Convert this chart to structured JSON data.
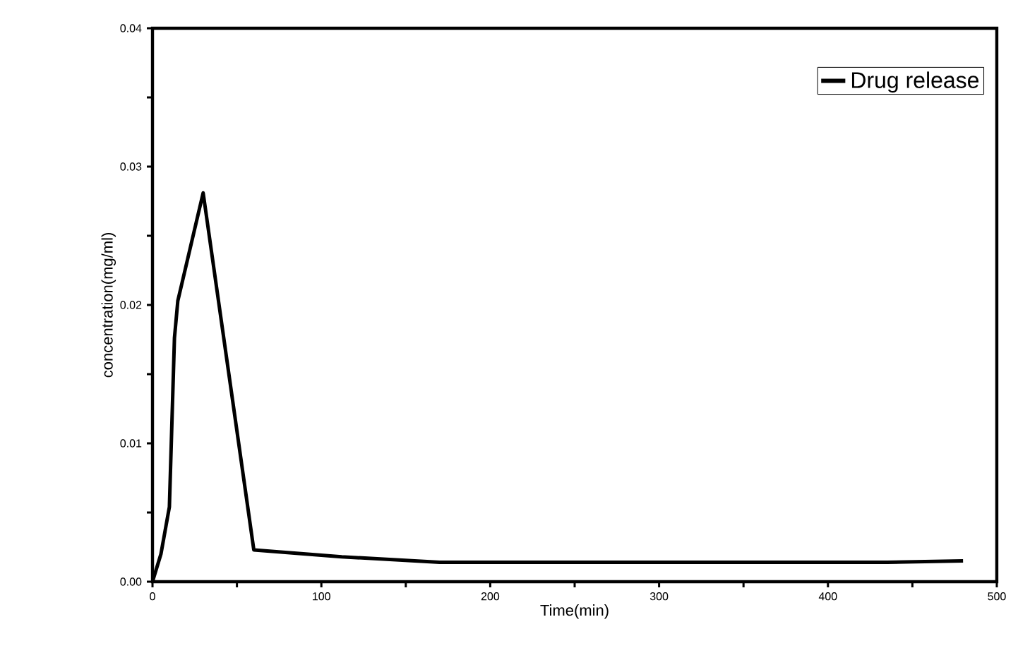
{
  "chart_data": {
    "type": "line",
    "xlabel": "Time(min)",
    "ylabel": "concentration(mg/ml)",
    "x": [
      0,
      5,
      10,
      13,
      15,
      30,
      60,
      112,
      170,
      300,
      435,
      480
    ],
    "series": [
      {
        "name": "Drug release",
        "color": "#000000",
        "values": [
          0,
          0.002,
          0.0054,
          0.0176,
          0.0203,
          0.0281,
          0.0023,
          0.0018,
          0.0014,
          0.0014,
          0.0014,
          0.0015
        ]
      }
    ],
    "xlim": [
      0,
      500
    ],
    "ylim": [
      0,
      0.04
    ],
    "xticks": [
      0,
      {
        "value": 50,
        "label": null
      },
      100,
      {
        "value": 150,
        "label": null
      },
      200,
      {
        "value": 250,
        "label": null
      },
      300,
      {
        "value": 350,
        "label": null
      },
      400,
      {
        "value": 450,
        "label": null
      },
      500
    ],
    "yticks": [
      {
        "value": 0,
        "label": "0.00"
      },
      {
        "value": 0.005,
        "label": null
      },
      {
        "value": 0.01,
        "label": "0.01"
      },
      {
        "value": 0.015,
        "label": null
      },
      {
        "value": 0.02,
        "label": "0.02"
      },
      {
        "value": 0.025,
        "label": null
      },
      {
        "value": 0.03,
        "label": "0.03"
      },
      {
        "value": 0.035,
        "label": null
      },
      {
        "value": 0.04,
        "label": "0.04"
      }
    ],
    "legend": "top right",
    "grid": false,
    "marker": "none",
    "line_style": "solid"
  }
}
